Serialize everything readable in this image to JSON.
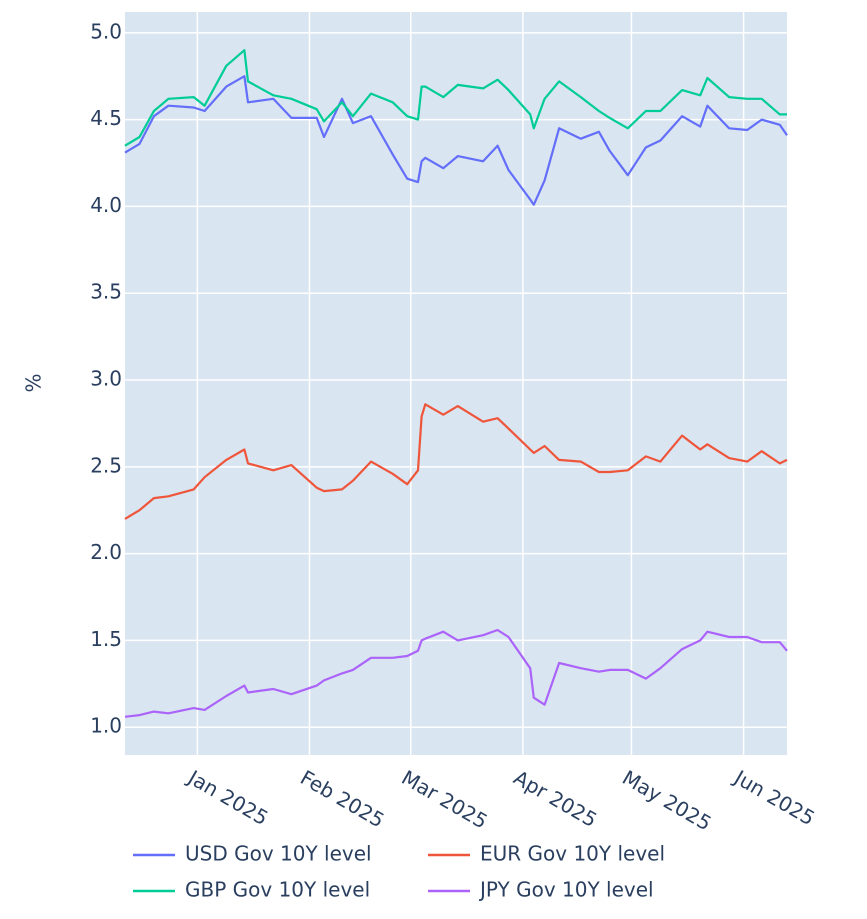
{
  "chart_data": {
    "type": "line",
    "y_label": "%",
    "x": [
      "2024-12-12",
      "2024-12-16",
      "2024-12-20",
      "2024-12-24",
      "2024-12-31",
      "2025-01-03",
      "2025-01-09",
      "2025-01-14",
      "2025-01-15",
      "2025-01-22",
      "2025-01-27",
      "2025-02-03",
      "2025-02-05",
      "2025-02-10",
      "2025-02-13",
      "2025-02-18",
      "2025-02-24",
      "2025-02-28",
      "2025-03-03",
      "2025-03-04",
      "2025-03-05",
      "2025-03-10",
      "2025-03-14",
      "2025-03-21",
      "2025-03-25",
      "2025-03-28",
      "2025-04-03",
      "2025-04-04",
      "2025-04-07",
      "2025-04-11",
      "2025-04-17",
      "2025-04-22",
      "2025-04-25",
      "2025-04-30",
      "2025-05-05",
      "2025-05-09",
      "2025-05-15",
      "2025-05-20",
      "2025-05-22",
      "2025-05-28",
      "2025-06-02",
      "2025-06-06",
      "2025-06-11",
      "2025-06-13"
    ],
    "series": [
      {
        "name": "USD Gov 10Y level",
        "color": "#636efa",
        "values": [
          4.31,
          4.36,
          4.52,
          4.58,
          4.57,
          4.55,
          4.69,
          4.75,
          4.6,
          4.62,
          4.51,
          4.51,
          4.4,
          4.62,
          4.48,
          4.52,
          4.3,
          4.16,
          4.14,
          4.26,
          4.28,
          4.22,
          4.29,
          4.26,
          4.35,
          4.21,
          4.04,
          4.01,
          4.15,
          4.45,
          4.39,
          4.43,
          4.32,
          4.18,
          4.34,
          4.38,
          4.52,
          4.46,
          4.58,
          4.45,
          4.44,
          4.5,
          4.47,
          4.41
        ]
      },
      {
        "name": "EUR Gov 10Y level",
        "color": "#ef553b",
        "values": [
          2.2,
          2.25,
          2.32,
          2.33,
          2.37,
          2.44,
          2.54,
          2.6,
          2.52,
          2.48,
          2.51,
          2.38,
          2.36,
          2.37,
          2.42,
          2.53,
          2.46,
          2.4,
          2.48,
          2.79,
          2.86,
          2.8,
          2.85,
          2.76,
          2.78,
          2.72,
          2.6,
          2.58,
          2.62,
          2.54,
          2.53,
          2.47,
          2.47,
          2.48,
          2.56,
          2.53,
          2.68,
          2.6,
          2.63,
          2.55,
          2.53,
          2.59,
          2.52,
          2.54
        ]
      },
      {
        "name": "GBP Gov 10Y level",
        "color": "#00cc96",
        "values": [
          4.35,
          4.4,
          4.55,
          4.62,
          4.63,
          4.58,
          4.81,
          4.9,
          4.72,
          4.64,
          4.62,
          4.56,
          4.49,
          4.6,
          4.52,
          4.65,
          4.6,
          4.52,
          4.5,
          4.69,
          4.69,
          4.63,
          4.7,
          4.68,
          4.73,
          4.67,
          4.53,
          4.45,
          4.62,
          4.72,
          4.63,
          4.55,
          4.51,
          4.45,
          4.55,
          4.55,
          4.67,
          4.64,
          4.74,
          4.63,
          4.62,
          4.62,
          4.53,
          4.53
        ]
      },
      {
        "name": "JPY Gov 10Y level",
        "color": "#ab63fa",
        "values": [
          1.06,
          1.07,
          1.09,
          1.08,
          1.11,
          1.1,
          1.18,
          1.24,
          1.2,
          1.22,
          1.19,
          1.24,
          1.27,
          1.31,
          1.33,
          1.4,
          1.4,
          1.41,
          1.44,
          1.5,
          1.51,
          1.55,
          1.5,
          1.53,
          1.56,
          1.52,
          1.34,
          1.17,
          1.13,
          1.37,
          1.34,
          1.32,
          1.33,
          1.33,
          1.28,
          1.34,
          1.45,
          1.5,
          1.55,
          1.52,
          1.52,
          1.49,
          1.49,
          1.44
        ]
      }
    ],
    "xlim": [
      "2024-12-12",
      "2025-06-13"
    ],
    "xticks": [
      {
        "value": "2025-01-01",
        "label": "Jan 2025"
      },
      {
        "value": "2025-02-01",
        "label": "Feb 2025"
      },
      {
        "value": "2025-03-01",
        "label": "Mar 2025"
      },
      {
        "value": "2025-04-01",
        "label": "Apr 2025"
      },
      {
        "value": "2025-05-01",
        "label": "May 2025"
      },
      {
        "value": "2025-06-01",
        "label": "Jun 2025"
      }
    ],
    "ylim": [
      0.84,
      5.12
    ],
    "yticks": [
      {
        "value": 1,
        "label": "1.0"
      },
      1.5,
      {
        "value": 2,
        "label": "2.0"
      },
      2.5,
      {
        "value": 3,
        "label": "3.0"
      },
      3.5,
      {
        "value": 4,
        "label": "4.0"
      },
      4.5,
      {
        "value": 5,
        "label": "5.0"
      }
    ],
    "grid": true,
    "legend": "bottom"
  }
}
